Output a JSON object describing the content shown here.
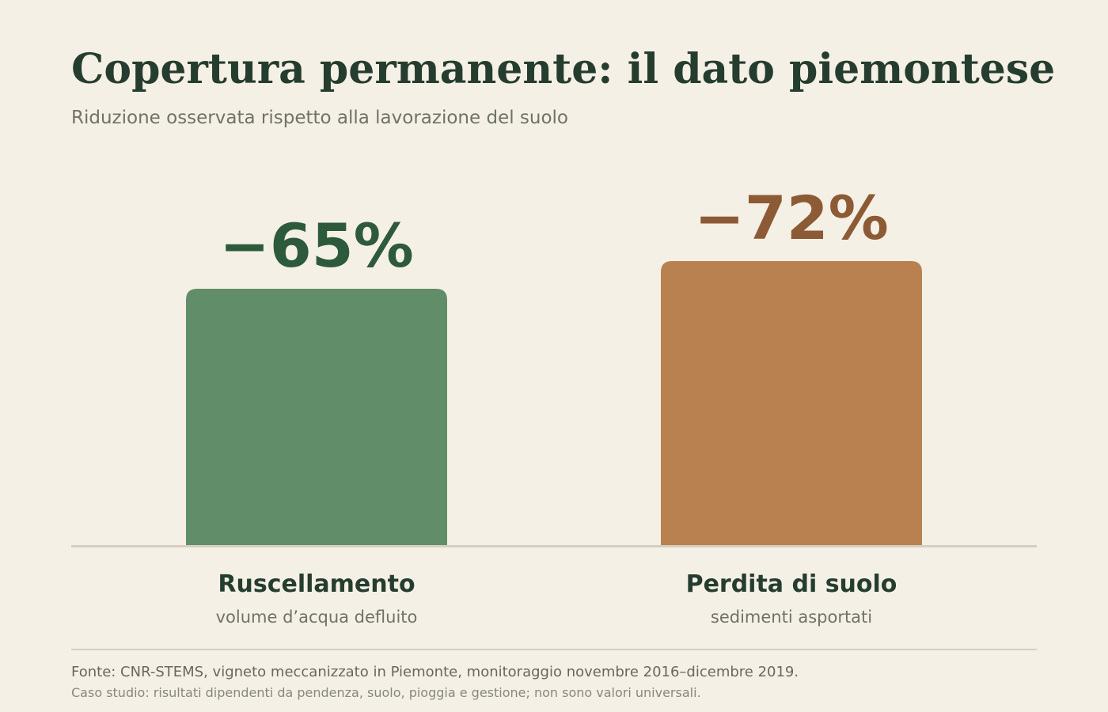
{
  "title": "Copertura permanente: il dato piemontese",
  "subtitle": "Riduzione osservata rispetto alla lavorazione del suolo",
  "footer": {
    "source": "Fonte: CNR-STEMS, vigneto meccanizzato in Piemonte, monitoraggio novembre 2016–dicembre 2019.",
    "note": "Caso studio: risultati dipendenti da pendenza, suolo, pioggia e gestione; non sono valori universali."
  },
  "chart_data": {
    "type": "bar",
    "title": "Copertura permanente: il dato piemontese",
    "subtitle": "Riduzione osservata rispetto alla lavorazione del suolo",
    "categories": [
      "Ruscellamento",
      "Perdita di suolo"
    ],
    "descriptions": [
      "volume d’acqua defluito",
      "sedimenti asportati"
    ],
    "values": [
      -65,
      -72
    ],
    "value_labels": [
      "−65%",
      "−72%"
    ],
    "unit": "%",
    "ylim": [
      0,
      80
    ],
    "grid": false,
    "legend": "none",
    "colors": {
      "bars": [
        "#618e68",
        "#b8814f"
      ],
      "value_labels": [
        "#2e5a3c",
        "#8c5a35"
      ],
      "baseline": "#d5cfc2",
      "category_label": "#253d2f",
      "description": "#6e7366"
    }
  }
}
